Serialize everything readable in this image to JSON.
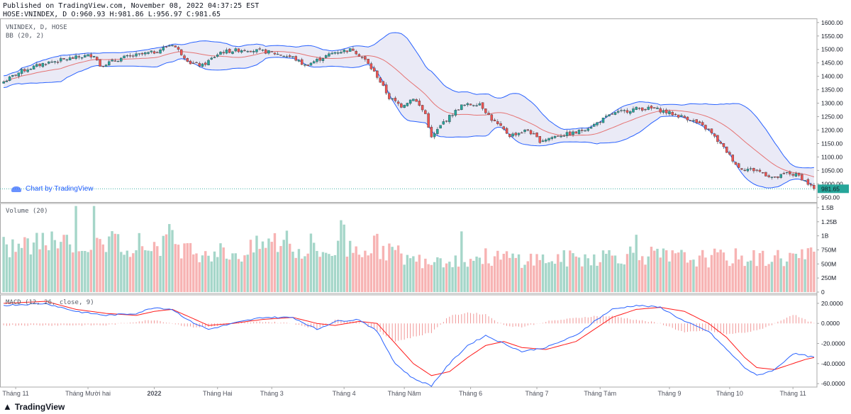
{
  "header": {
    "published": "Published on TradingView.com, November 08, 2022 04:37:25 EST",
    "ohlc": "HOSE:VNINDEX, D O:960.93 H:981.86 L:956.97 C:981.65"
  },
  "panes": {
    "price_title": "VNINDEX, D, HOSE",
    "bb_label": "BB (20, 2)",
    "volume_label": "Volume (20)",
    "macd_label": "MACD (12, 26, close, 9)"
  },
  "watermark": "Chart by TradingView",
  "footer": {
    "brand": "TradingView"
  },
  "last_price": "981.65",
  "colors": {
    "up": "#26a69a",
    "down": "#ef5350",
    "band": "#2962ff",
    "bandfill": "#e6e6f5",
    "basis": "#e57373",
    "macd": "#2962ff",
    "signal": "#ff1a1a"
  },
  "chart_data": [
    {
      "type": "candlestick",
      "title": "VNINDEX, D, HOSE",
      "y_ticks": [
        "1600.00",
        "1550.00",
        "1500.00",
        "1450.00",
        "1400.00",
        "1350.00",
        "1300.00",
        "1250.00",
        "1200.00",
        "1150.00",
        "1100.00",
        "1050.00",
        "1000.00",
        "950.00"
      ],
      "ylim": [
        935,
        1610
      ],
      "x_ticks": [
        "Tháng 11",
        "Tháng Mười hai",
        "2022",
        "Tháng Hai",
        "Tháng 3",
        "Tháng 4",
        "Tháng Năm",
        "Tháng 6",
        "Tháng 7",
        "Tháng Tám",
        "Tháng 9",
        "Tháng 10",
        "Tháng 11"
      ],
      "x_tick_index": [
        4,
        28,
        50,
        71,
        89,
        113,
        133,
        155,
        177,
        198,
        221,
        241,
        262
      ],
      "n_bars": 270,
      "close_anchors": [
        [
          0,
          1380
        ],
        [
          6,
          1420
        ],
        [
          14,
          1450
        ],
        [
          24,
          1470
        ],
        [
          30,
          1480
        ],
        [
          32,
          1440
        ],
        [
          40,
          1470
        ],
        [
          50,
          1490
        ],
        [
          56,
          1520
        ],
        [
          62,
          1450
        ],
        [
          66,
          1440
        ],
        [
          72,
          1490
        ],
        [
          80,
          1500
        ],
        [
          88,
          1490
        ],
        [
          96,
          1470
        ],
        [
          100,
          1440
        ],
        [
          104,
          1460
        ],
        [
          110,
          1490
        ],
        [
          116,
          1500
        ],
        [
          120,
          1460
        ],
        [
          124,
          1400
        ],
        [
          128,
          1320
        ],
        [
          132,
          1290
        ],
        [
          136,
          1320
        ],
        [
          140,
          1260
        ],
        [
          142,
          1170
        ],
        [
          146,
          1230
        ],
        [
          152,
          1290
        ],
        [
          158,
          1300
        ],
        [
          162,
          1240
        ],
        [
          168,
          1180
        ],
        [
          174,
          1200
        ],
        [
          178,
          1160
        ],
        [
          184,
          1180
        ],
        [
          190,
          1190
        ],
        [
          196,
          1220
        ],
        [
          202,
          1260
        ],
        [
          210,
          1280
        ],
        [
          216,
          1280
        ],
        [
          222,
          1260
        ],
        [
          228,
          1240
        ],
        [
          234,
          1200
        ],
        [
          240,
          1120
        ],
        [
          244,
          1060
        ],
        [
          250,
          1050
        ],
        [
          256,
          1020
        ],
        [
          260,
          1040
        ],
        [
          264,
          1030
        ],
        [
          269,
          981.65
        ]
      ],
      "last_close": 981.65,
      "bollinger": {
        "period": 20,
        "stddev": 2
      }
    },
    {
      "type": "bar",
      "title": "Volume (20)",
      "y_ticks": [
        "1.5B",
        "1.25B",
        "1B",
        "750M",
        "500M",
        "250M",
        "0"
      ],
      "ylim": [
        0,
        1.55
      ],
      "units": "billion",
      "volume_anchors": [
        [
          0,
          0.78
        ],
        [
          10,
          0.85
        ],
        [
          20,
          0.95
        ],
        [
          30,
          0.85
        ],
        [
          40,
          0.88
        ],
        [
          50,
          0.82
        ],
        [
          56,
          1.0
        ],
        [
          60,
          0.75
        ],
        [
          70,
          0.72
        ],
        [
          80,
          0.68
        ],
        [
          86,
          0.85
        ],
        [
          90,
          0.9
        ],
        [
          96,
          0.78
        ],
        [
          104,
          0.7
        ],
        [
          110,
          0.75
        ],
        [
          116,
          0.8
        ],
        [
          124,
          0.82
        ],
        [
          130,
          0.7
        ],
        [
          136,
          0.55
        ],
        [
          144,
          0.62
        ],
        [
          150,
          0.58
        ],
        [
          160,
          0.62
        ],
        [
          170,
          0.6
        ],
        [
          180,
          0.58
        ],
        [
          190,
          0.6
        ],
        [
          200,
          0.65
        ],
        [
          210,
          0.68
        ],
        [
          220,
          0.62
        ],
        [
          230,
          0.6
        ],
        [
          240,
          0.62
        ],
        [
          250,
          0.6
        ],
        [
          260,
          0.62
        ],
        [
          269,
          0.65
        ]
      ]
    },
    {
      "type": "line",
      "title": "MACD (12, 26, close, 9)",
      "y_ticks": [
        "20.0000",
        "0.0000",
        "-20.0000",
        "-40.0000",
        "-60.0000"
      ],
      "ylim": [
        -62,
        27
      ],
      "series": [
        {
          "name": "MACD",
          "anchors": [
            [
              0,
              18
            ],
            [
              14,
              20
            ],
            [
              24,
              12
            ],
            [
              34,
              8
            ],
            [
              44,
              10
            ],
            [
              50,
              16
            ],
            [
              56,
              14
            ],
            [
              62,
              2
            ],
            [
              68,
              -6
            ],
            [
              76,
              0
            ],
            [
              86,
              6
            ],
            [
              96,
              6
            ],
            [
              104,
              -6
            ],
            [
              110,
              2
            ],
            [
              118,
              4
            ],
            [
              124,
              -8
            ],
            [
              130,
              -40
            ],
            [
              136,
              -55
            ],
            [
              142,
              -62
            ],
            [
              148,
              -40
            ],
            [
              154,
              -22
            ],
            [
              160,
              -12
            ],
            [
              166,
              -20
            ],
            [
              172,
              -28
            ],
            [
              180,
              -24
            ],
            [
              190,
              -12
            ],
            [
              196,
              2
            ],
            [
              202,
              14
            ],
            [
              210,
              18
            ],
            [
              218,
              16
            ],
            [
              226,
              2
            ],
            [
              234,
              -8
            ],
            [
              240,
              -26
            ],
            [
              246,
              -44
            ],
            [
              250,
              -52
            ],
            [
              256,
              -46
            ],
            [
              262,
              -30
            ],
            [
              266,
              -32
            ],
            [
              269,
              -34
            ]
          ]
        },
        {
          "name": "Signal",
          "anchors": [
            [
              0,
              20
            ],
            [
              14,
              22
            ],
            [
              24,
              14
            ],
            [
              34,
              10
            ],
            [
              44,
              8
            ],
            [
              50,
              12
            ],
            [
              56,
              14
            ],
            [
              62,
              6
            ],
            [
              68,
              -2
            ],
            [
              76,
              0
            ],
            [
              86,
              4
            ],
            [
              96,
              6
            ],
            [
              104,
              0
            ],
            [
              110,
              -2
            ],
            [
              118,
              2
            ],
            [
              124,
              0
            ],
            [
              130,
              -20
            ],
            [
              136,
              -40
            ],
            [
              142,
              -52
            ],
            [
              148,
              -48
            ],
            [
              154,
              -34
            ],
            [
              160,
              -22
            ],
            [
              166,
              -18
            ],
            [
              172,
              -24
            ],
            [
              180,
              -26
            ],
            [
              190,
              -18
            ],
            [
              196,
              -6
            ],
            [
              202,
              6
            ],
            [
              210,
              14
            ],
            [
              218,
              16
            ],
            [
              226,
              12
            ],
            [
              234,
              0
            ],
            [
              240,
              -14
            ],
            [
              246,
              -34
            ],
            [
              250,
              -44
            ],
            [
              256,
              -46
            ],
            [
              262,
              -40
            ],
            [
              266,
              -36
            ],
            [
              269,
              -34
            ]
          ]
        }
      ]
    }
  ]
}
